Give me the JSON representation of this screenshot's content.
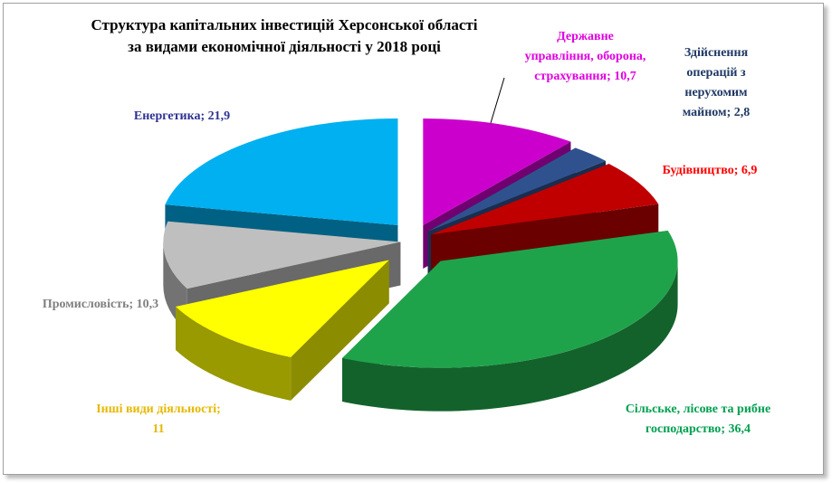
{
  "chart_data": {
    "type": "pie3d",
    "title": [
      "Структура капітальних інвестицій Херсонської області",
      "за видами економічної діяльності у 2018 році"
    ],
    "label_separator": "; ",
    "categories": [
      "Державне управління, оборона, страхування",
      "Здійснення операцій з нерухомим майном",
      "Будівництво",
      "Сільське, лісове та рибне господарство",
      "Інші види діяльності",
      "Промисловість",
      "Енергетика"
    ],
    "values": [
      10.7,
      2.8,
      6.9,
      36.4,
      11,
      10.3,
      21.9
    ],
    "value_labels": [
      "10,7",
      "2,8",
      "6,9",
      "36,4",
      "11",
      "10,3",
      "21,9"
    ],
    "colors": [
      "#cc00cc",
      "#2f528f",
      "#c00000",
      "#1fa34a",
      "#ffff00",
      "#bfbfbf",
      "#00b0f0"
    ],
    "label_colors": [
      "#e000e0",
      "#1f3864",
      "#ff0000",
      "#00a050",
      "#e6b800",
      "#808080",
      "#2e3192"
    ]
  }
}
